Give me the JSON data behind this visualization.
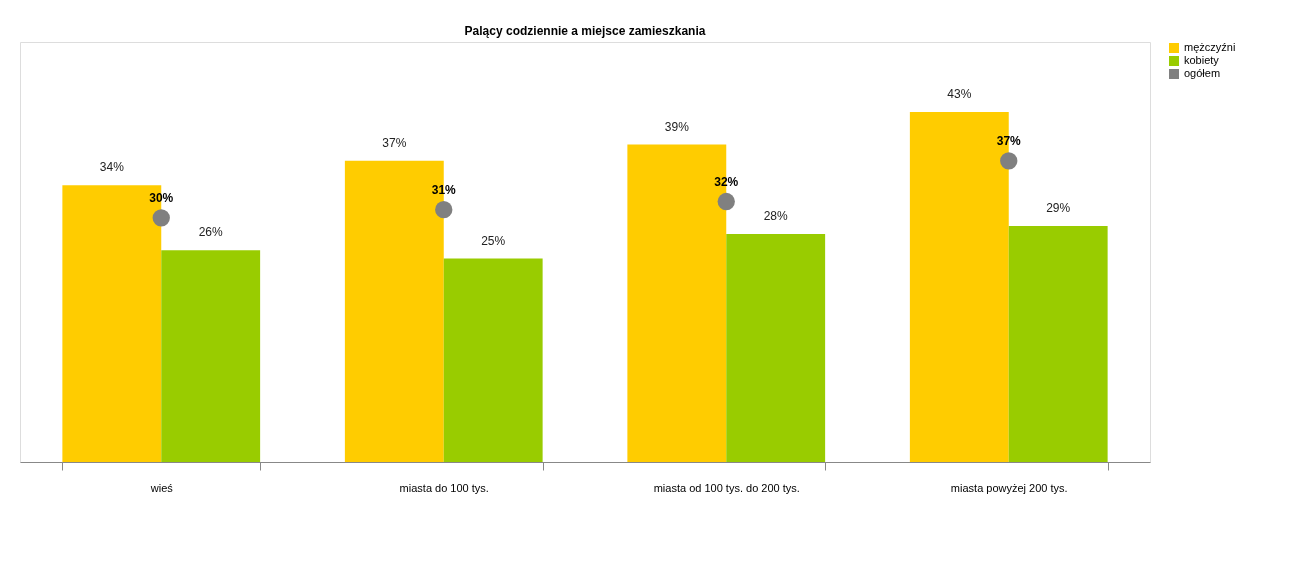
{
  "chart_data": {
    "type": "bar",
    "title": "Palący codziennie a miejsce zamieszkania",
    "categories": [
      "wieś",
      "miasta do 100 tys.",
      "miasta od 100 tys. do 200 tys.",
      "miasta powyżej 200 tys."
    ],
    "series": [
      {
        "name": "mężczyźni",
        "color": "#ffcc00",
        "values": [
          34,
          37,
          39,
          43
        ],
        "value_labels": [
          "34%",
          "37%",
          "39%",
          "43%"
        ]
      },
      {
        "name": "kobiety",
        "color": "#99cc00",
        "values": [
          26,
          25,
          28,
          29
        ],
        "value_labels": [
          "26%",
          "25%",
          "28%",
          "29%"
        ]
      },
      {
        "name": "ogółem",
        "type": "scatter",
        "marker": "circle",
        "color": "#808080",
        "values": [
          30,
          31,
          32,
          37
        ],
        "value_labels": [
          "30%",
          "31%",
          "32%",
          "37%"
        ]
      }
    ],
    "legend": "right",
    "grid": false
  }
}
